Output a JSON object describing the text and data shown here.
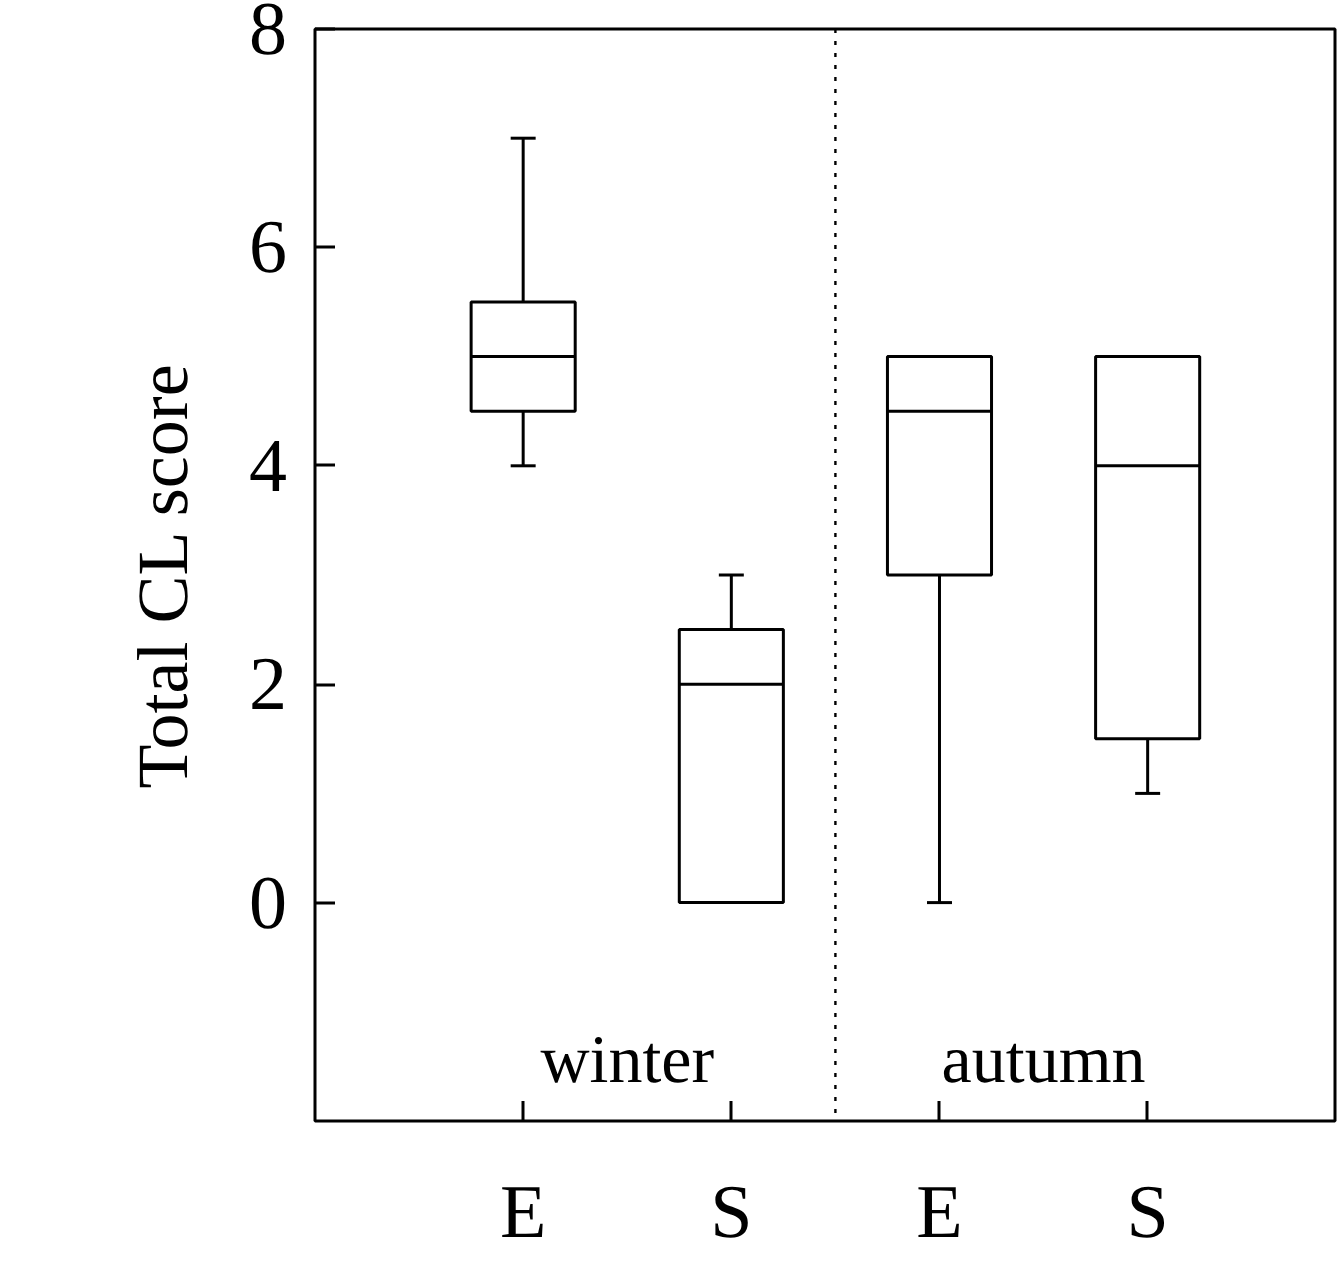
{
  "chart_data": {
    "type": "box",
    "ylabel": "Total CL score",
    "categories": [
      "E",
      "S",
      "E",
      "S"
    ],
    "boxes": [
      {
        "low": 4,
        "q1": 4.5,
        "median": 5,
        "q3": 5.5,
        "high": 7
      },
      {
        "low": 0,
        "q1": 0,
        "median": 2,
        "q3": 2.5,
        "high": 3
      },
      {
        "low": 0,
        "q1": 3,
        "median": 4.5,
        "q3": 5,
        "high": 5
      },
      {
        "low": 1,
        "q1": 1.5,
        "median": 4,
        "q3": 5,
        "high": 5
      }
    ],
    "ylim": [
      -2,
      8
    ],
    "yticks": [
      0,
      2,
      4,
      6,
      8
    ],
    "annotations": [
      "winter",
      "autumn"
    ],
    "grid": false
  }
}
